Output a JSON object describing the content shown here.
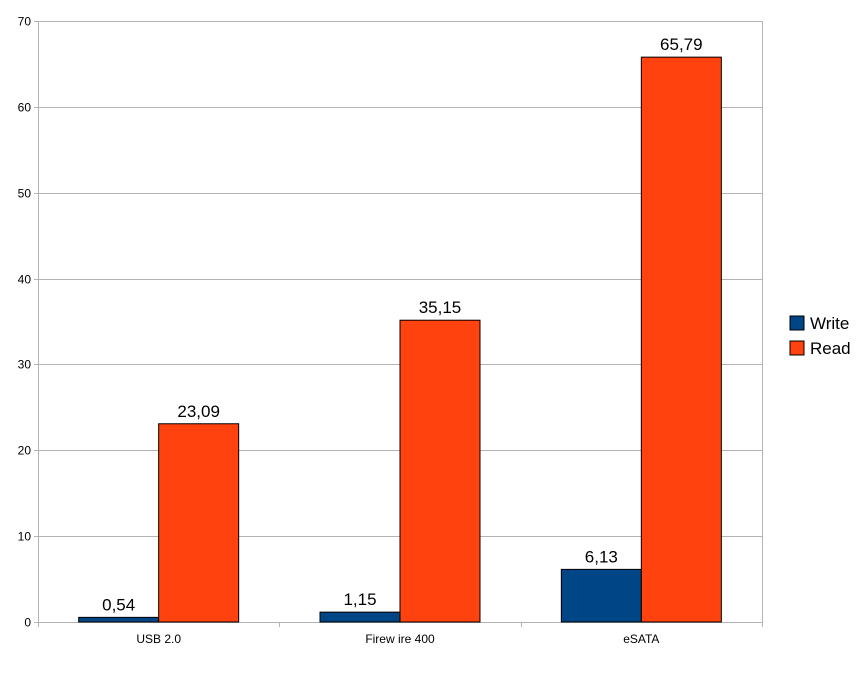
{
  "chart_data": {
    "type": "bar",
    "categories": [
      "USB 2.0",
      "Firew ire 400",
      "eSATA"
    ],
    "series": [
      {
        "name": "Write",
        "values": [
          0.54,
          1.15,
          6.13
        ],
        "labels": [
          "0,54",
          "1,15",
          "6,13"
        ],
        "color": "#004586"
      },
      {
        "name": "Read",
        "values": [
          23.09,
          35.15,
          65.79
        ],
        "labels": [
          "23,09",
          "35,15",
          "65,79"
        ],
        "color": "#ff420e"
      }
    ],
    "ylim": [
      0,
      70
    ],
    "yticks": [
      0,
      10,
      20,
      30,
      40,
      50,
      60,
      70
    ],
    "grid": true,
    "legend_position": "right"
  }
}
